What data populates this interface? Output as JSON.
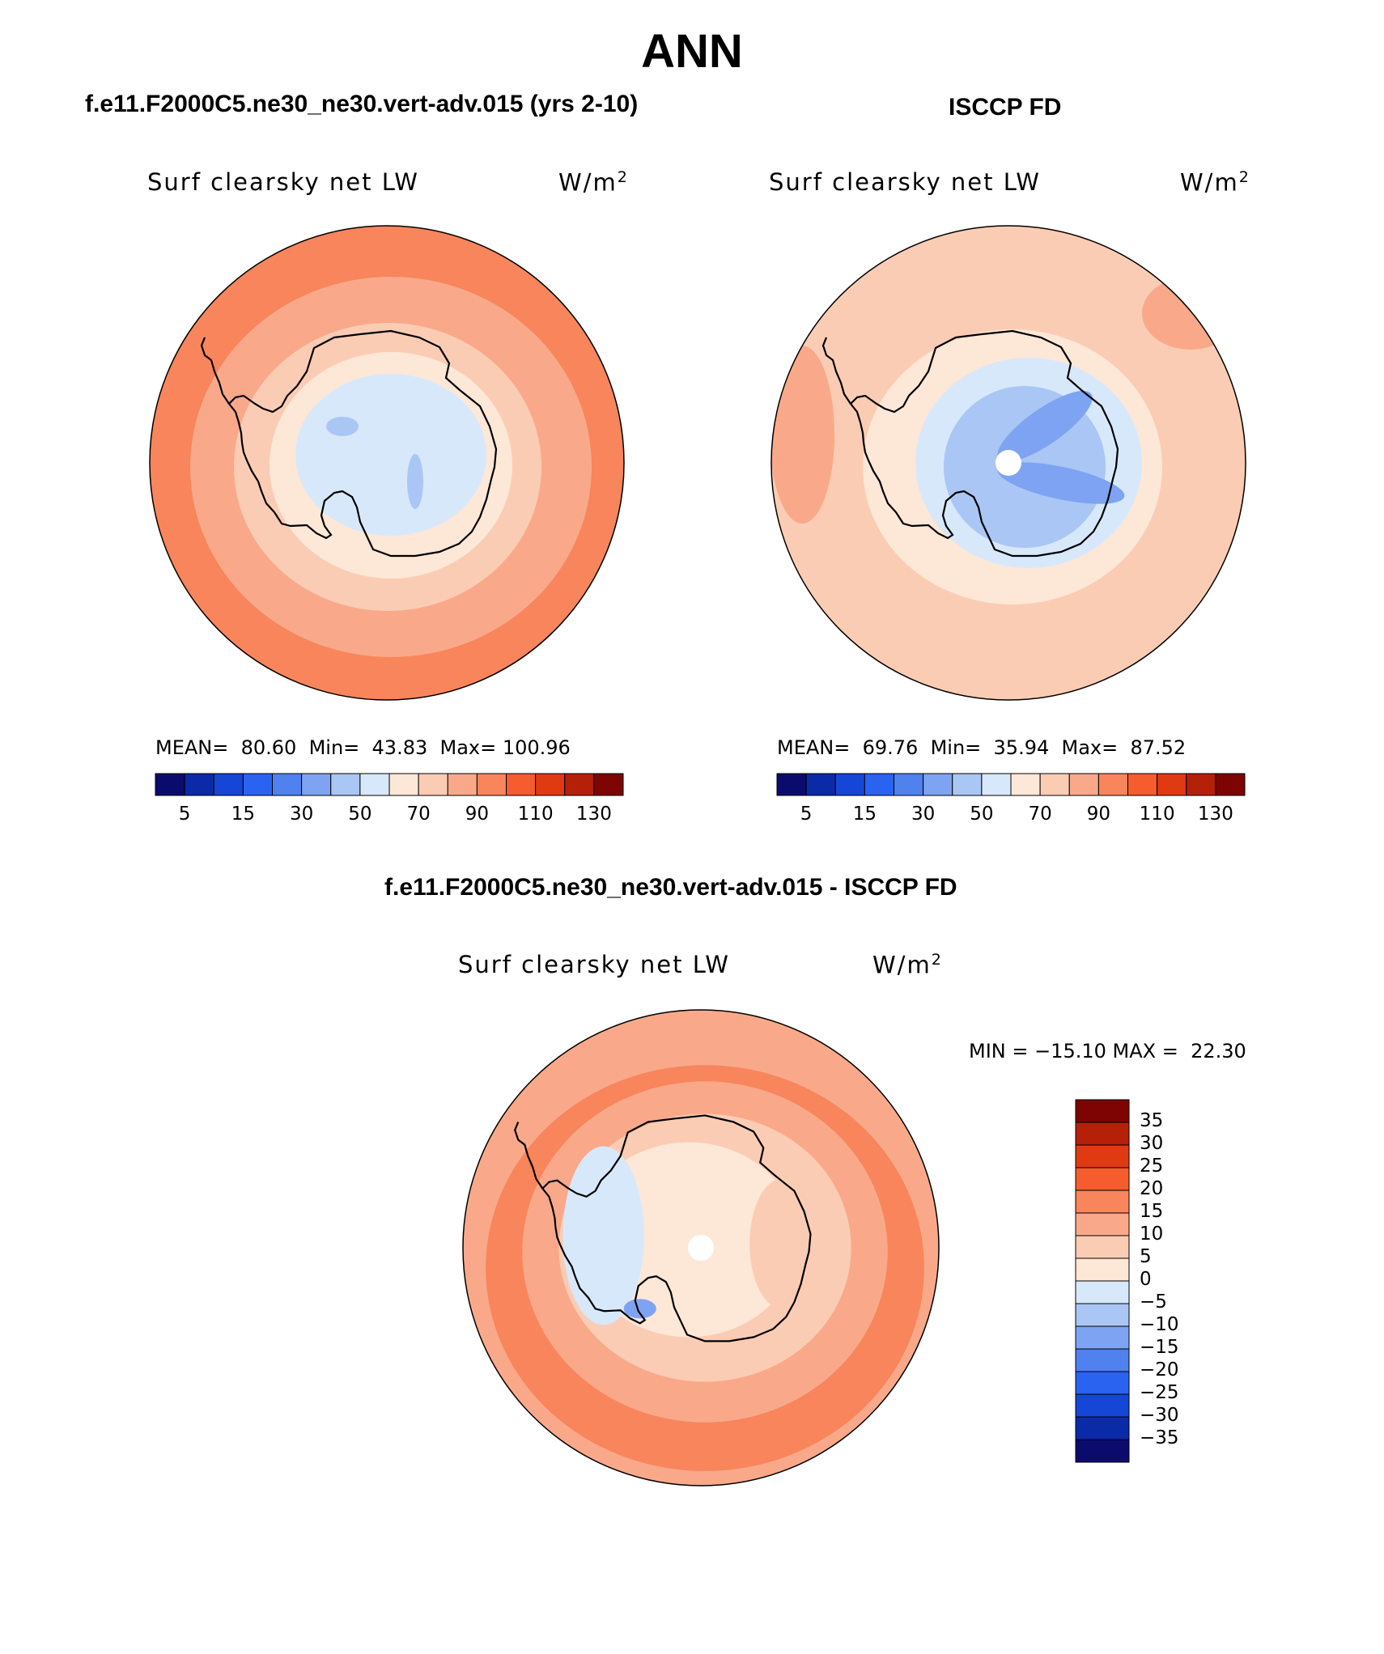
{
  "title": "ANN",
  "panels": [
    {
      "id": "model",
      "case_title": "f.e11.F2000C5.ne30_ne30.vert-adv.015 (yrs 2-10)",
      "label": "Surf clearsky net LW",
      "units": "W/m",
      "units_sup": "2",
      "stats": "MEAN=  80.60  Min=  43.83  Max= 100.96",
      "mean": 80.6,
      "min": 43.83,
      "max": 100.96
    },
    {
      "id": "obs",
      "case_title": "ISCCP FD",
      "label": "Surf clearsky net LW",
      "units": "W/m",
      "units_sup": "2",
      "stats": "MEAN=  69.76  Min=  35.94  Max=  87.52",
      "mean": 69.76,
      "min": 35.94,
      "max": 87.52
    },
    {
      "id": "diff",
      "case_title": "f.e11.F2000C5.ne30_ne30.vert-adv.015 - ISCCP FD",
      "label": "Surf clearsky net LW",
      "units": "W/m",
      "units_sup": "2",
      "stats": "MIN = −15.10 MAX =  22.30",
      "min": -15.1,
      "max": 22.3
    }
  ],
  "colorbar_abs": {
    "colors": [
      "#0b0b6e",
      "#0a2aa8",
      "#1546d6",
      "#2a63f0",
      "#4f82ef",
      "#7ea3f2",
      "#aac6f5",
      "#d8e8fb",
      "#fde7d7",
      "#fbccb4",
      "#f9a98a",
      "#f8855c",
      "#f55c2e",
      "#e03a12",
      "#b52008",
      "#7e0404"
    ],
    "ticks": [
      "5",
      "15",
      "30",
      "50",
      "70",
      "90",
      "110",
      "130"
    ]
  },
  "colorbar_diff": {
    "colors": [
      "#0b0b6e",
      "#0a2aa8",
      "#1546d6",
      "#2a63f0",
      "#4f82ef",
      "#7ea3f2",
      "#aac6f5",
      "#d8e8fb",
      "#fde7d7",
      "#fbccb4",
      "#f9a98a",
      "#f8855c",
      "#f55c2e",
      "#e03a12",
      "#b52008",
      "#7e0404"
    ],
    "ticks": [
      "35",
      "30",
      "25",
      "20",
      "15",
      "10",
      "5",
      "0",
      "−5",
      "−10",
      "−15",
      "−20",
      "−25",
      "−30",
      "−35"
    ]
  }
}
